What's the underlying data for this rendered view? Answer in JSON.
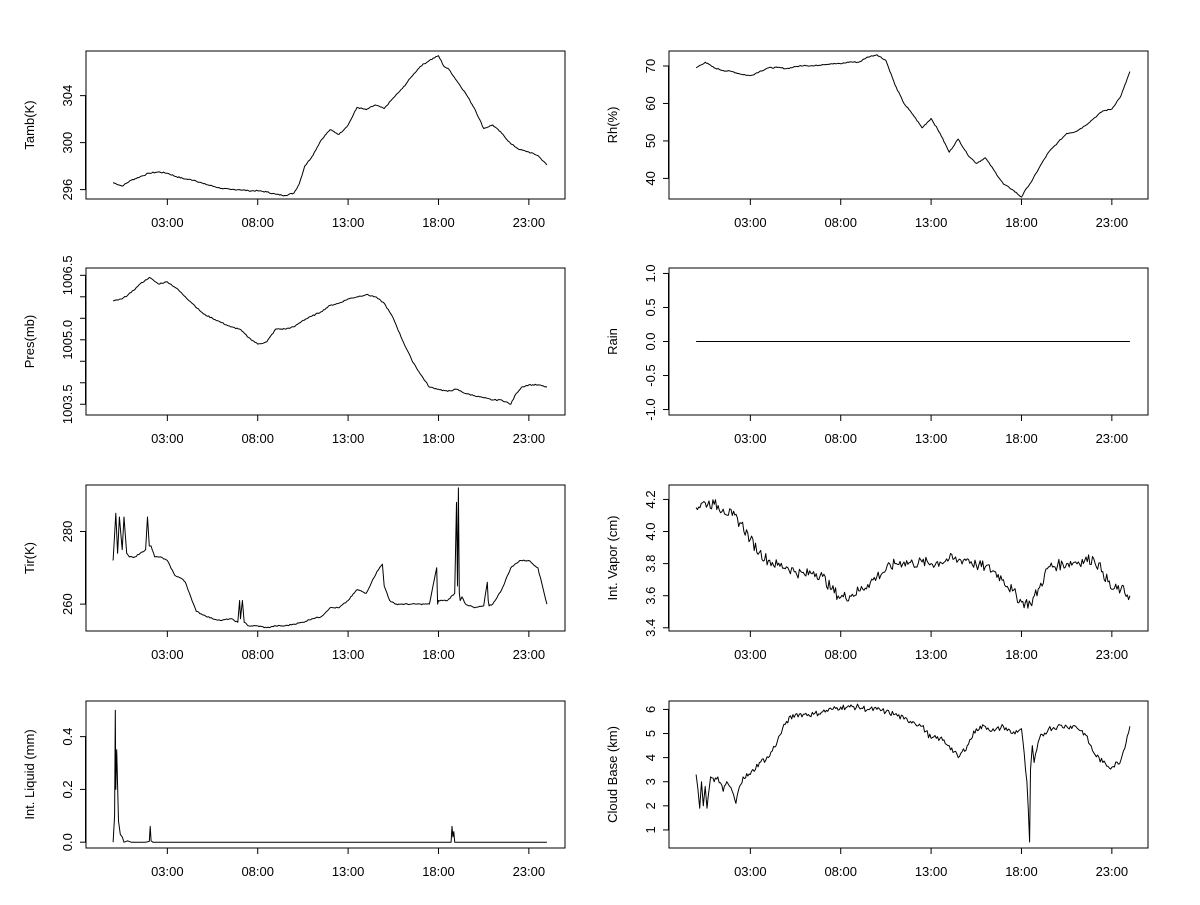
{
  "x_tick_labels": [
    "03:00",
    "08:00",
    "13:00",
    "18:00",
    "23:00"
  ],
  "line_color": "#000000",
  "chart_data": [
    {
      "type": "line",
      "ylabel": "Tamb(K)",
      "ytick_labels": [
        "296",
        "300",
        "304"
      ],
      "yticks": [
        296,
        300,
        304
      ],
      "ylim": [
        295.2,
        307.8
      ],
      "xlim": [
        -1.5,
        25.0
      ],
      "series": [
        {
          "x": [
            0.0,
            0.5,
            1.0,
            1.5,
            2.0,
            2.5,
            3.0,
            3.5,
            4.0,
            4.5,
            5.0,
            5.5,
            6.0,
            6.5,
            7.0,
            7.5,
            8.0,
            8.5,
            9.0,
            9.5,
            10.0,
            10.3,
            10.6,
            11.0,
            11.5,
            12.0,
            12.5,
            13.0,
            13.5,
            14.0,
            14.5,
            15.0,
            15.5,
            16.0,
            16.5,
            17.0,
            17.5,
            18.0,
            18.3,
            18.6,
            19.0,
            19.5,
            20.0,
            20.5,
            21.0,
            21.5,
            22.0,
            22.5,
            23.0,
            23.5,
            24.0
          ],
          "values": [
            296.6,
            296.3,
            296.8,
            297.1,
            297.4,
            297.5,
            297.4,
            297.1,
            296.9,
            296.8,
            296.5,
            296.3,
            296.1,
            296.0,
            296.0,
            295.9,
            295.9,
            295.8,
            295.6,
            295.5,
            295.7,
            296.5,
            298.0,
            298.8,
            300.2,
            301.1,
            300.7,
            301.5,
            303.0,
            302.8,
            303.2,
            302.9,
            303.8,
            304.6,
            305.6,
            306.5,
            307.0,
            307.4,
            306.5,
            306.2,
            305.3,
            304.2,
            302.9,
            301.2,
            301.5,
            300.8,
            299.9,
            299.4,
            299.2,
            298.9,
            298.1
          ]
        }
      ]
    },
    {
      "type": "line",
      "ylabel": "Rh(%)",
      "ytick_labels": [
        "40",
        "50",
        "60",
        "70"
      ],
      "yticks": [
        40,
        50,
        60,
        70
      ],
      "ylim": [
        34.5,
        74.0
      ],
      "xlim": [
        -1.5,
        25.0
      ],
      "series": [
        {
          "x": [
            0.0,
            0.5,
            1.0,
            1.5,
            2.0,
            2.5,
            3.0,
            3.5,
            4.0,
            4.5,
            5.0,
            5.5,
            6.0,
            6.5,
            7.0,
            7.5,
            8.0,
            8.5,
            9.0,
            9.5,
            10.0,
            10.5,
            11.0,
            11.5,
            12.0,
            12.5,
            13.0,
            13.5,
            14.0,
            14.5,
            15.0,
            15.5,
            16.0,
            16.5,
            17.0,
            17.5,
            18.0,
            18.3,
            18.6,
            19.0,
            19.5,
            20.0,
            20.5,
            21.0,
            21.5,
            22.0,
            22.5,
            23.0,
            23.5,
            24.0
          ],
          "values": [
            69.5,
            71.0,
            69.5,
            68.8,
            68.5,
            67.8,
            67.4,
            68.5,
            69.5,
            69.6,
            69.3,
            69.8,
            70.2,
            70.0,
            70.4,
            70.6,
            70.6,
            71.1,
            71.0,
            72.4,
            73.0,
            71.5,
            65.0,
            60.0,
            57.0,
            53.5,
            56.0,
            52.0,
            47.0,
            50.5,
            46.5,
            44.0,
            45.5,
            42.0,
            38.5,
            37.0,
            35.0,
            37.5,
            39.5,
            43.0,
            47.0,
            49.5,
            52.0,
            52.5,
            54.0,
            56.0,
            58.0,
            58.5,
            62.0,
            68.5
          ]
        }
      ]
    },
    {
      "type": "line",
      "ylabel": "Pres(mb)",
      "ytick_labels": [
        "1003.5",
        "1005.0",
        "1006.5"
      ],
      "yticks": [
        1003.5,
        1004.0,
        1004.5,
        1005.0,
        1005.5,
        1006.0,
        1006.5
      ],
      "ylim": [
        1003.25,
        1006.67
      ],
      "xlim": [
        -1.5,
        25.0
      ],
      "series": [
        {
          "x": [
            0.0,
            0.5,
            1.0,
            1.5,
            2.0,
            2.5,
            3.0,
            3.5,
            4.0,
            4.5,
            5.0,
            5.5,
            6.0,
            6.5,
            7.0,
            7.5,
            8.0,
            8.5,
            9.0,
            9.5,
            10.0,
            10.5,
            11.0,
            11.5,
            12.0,
            12.5,
            13.0,
            13.5,
            14.0,
            14.5,
            15.0,
            15.5,
            16.0,
            16.5,
            17.0,
            17.5,
            18.0,
            18.5,
            19.0,
            19.5,
            20.0,
            20.5,
            21.0,
            21.5,
            22.0,
            22.3,
            22.6,
            23.0,
            23.5,
            24.0
          ],
          "values": [
            1005.9,
            1005.95,
            1006.1,
            1006.3,
            1006.45,
            1006.3,
            1006.35,
            1006.2,
            1006.0,
            1005.8,
            1005.6,
            1005.5,
            1005.4,
            1005.3,
            1005.25,
            1005.05,
            1004.9,
            1004.95,
            1005.25,
            1005.25,
            1005.3,
            1005.45,
            1005.55,
            1005.65,
            1005.8,
            1005.85,
            1005.95,
            1006.0,
            1006.05,
            1006.0,
            1005.85,
            1005.5,
            1005.0,
            1004.55,
            1004.2,
            1003.9,
            1003.85,
            1003.8,
            1003.85,
            1003.75,
            1003.7,
            1003.65,
            1003.6,
            1003.6,
            1003.5,
            1003.75,
            1003.9,
            1003.95,
            1003.95,
            1003.9
          ]
        }
      ]
    },
    {
      "type": "line",
      "ylabel": "Rain",
      "ytick_labels": [
        "-1.0",
        "-0.5",
        "0.0",
        "0.5",
        "1.0"
      ],
      "yticks": [
        -1.0,
        -0.5,
        0.0,
        0.5,
        1.0
      ],
      "ylim": [
        -1.08,
        1.08
      ],
      "xlim": [
        -1.5,
        25.0
      ],
      "series": [
        {
          "x": [
            0.0,
            24.0
          ],
          "values": [
            0.0,
            0.0
          ]
        }
      ]
    },
    {
      "type": "line",
      "ylabel": "Tir(K)",
      "ytick_labels": [
        "260",
        "280"
      ],
      "yticks": [
        260,
        280
      ],
      "ylim": [
        252.6,
        292.8
      ],
      "xlim": [
        -1.5,
        25.0
      ],
      "series": [
        {
          "x": [
            0.0,
            0.15,
            0.25,
            0.35,
            0.5,
            0.6,
            0.75,
            0.9,
            1.05,
            1.2,
            1.5,
            1.8,
            1.9,
            2.0,
            2.1,
            2.3,
            2.6,
            3.0,
            3.4,
            3.8,
            4.0,
            4.3,
            4.6,
            5.0,
            5.5,
            6.0,
            6.5,
            6.9,
            7.0,
            7.05,
            7.15,
            7.25,
            7.5,
            8.0,
            8.5,
            9.0,
            9.5,
            10.0,
            10.5,
            11.0,
            11.5,
            12.0,
            12.5,
            13.0,
            13.5,
            14.0,
            14.3,
            14.6,
            14.9,
            15.0,
            15.3,
            15.6,
            16.0,
            16.5,
            17.0,
            17.5,
            17.9,
            17.95,
            18.0,
            18.5,
            18.9,
            19.0,
            19.05,
            19.1,
            19.15,
            19.2,
            19.3,
            19.5,
            20.0,
            20.5,
            20.7,
            20.75,
            20.8,
            21.0,
            21.5,
            22.0,
            22.5,
            23.0,
            23.5,
            23.8,
            24.0
          ],
          "values": [
            272,
            285,
            274,
            284,
            275,
            284,
            274,
            273,
            273,
            273,
            274,
            275,
            284,
            276,
            276,
            273,
            273,
            272,
            268,
            267,
            266,
            262,
            258,
            257,
            256,
            255.5,
            256,
            255,
            261,
            256,
            261,
            255,
            254,
            254,
            253.5,
            254,
            254,
            254.5,
            255,
            256,
            256.5,
            259,
            259,
            261,
            264,
            263,
            266,
            269,
            271,
            265,
            261,
            260,
            260,
            260,
            260,
            260,
            270,
            260,
            261,
            261,
            263,
            288,
            265,
            292,
            263,
            261,
            262,
            260,
            259,
            259.5,
            266,
            261,
            259.5,
            260,
            264,
            270,
            272,
            272,
            270,
            264,
            260
          ]
        }
      ]
    },
    {
      "type": "line",
      "ylabel": "Int. Vapor (cm)",
      "ytick_labels": [
        "3.4",
        "3.6",
        "3.8",
        "4.0",
        "4.2"
      ],
      "yticks": [
        3.4,
        3.6,
        3.8,
        4.0,
        4.2
      ],
      "ylim": [
        3.38,
        4.29
      ],
      "xlim": [
        -1.5,
        25.0
      ],
      "series": [
        {
          "x": [
            0.0,
            0.5,
            1.0,
            1.5,
            2.0,
            2.5,
            3.0,
            3.5,
            4.0,
            4.5,
            5.0,
            5.5,
            6.0,
            6.5,
            7.0,
            7.5,
            8.0,
            8.5,
            9.0,
            9.5,
            10.0,
            10.5,
            11.0,
            11.5,
            12.0,
            12.5,
            13.0,
            13.5,
            14.0,
            14.5,
            15.0,
            15.5,
            16.0,
            16.5,
            17.0,
            17.5,
            18.0,
            18.5,
            19.0,
            19.5,
            20.0,
            20.5,
            21.0,
            21.5,
            22.0,
            22.5,
            23.0,
            23.5,
            24.0
          ],
          "values": [
            4.15,
            4.18,
            4.17,
            4.14,
            4.1,
            4.05,
            3.95,
            3.87,
            3.82,
            3.79,
            3.78,
            3.75,
            3.73,
            3.75,
            3.72,
            3.64,
            3.59,
            3.6,
            3.63,
            3.67,
            3.72,
            3.76,
            3.8,
            3.81,
            3.8,
            3.81,
            3.8,
            3.81,
            3.83,
            3.82,
            3.83,
            3.79,
            3.78,
            3.75,
            3.7,
            3.63,
            3.56,
            3.55,
            3.65,
            3.78,
            3.79,
            3.8,
            3.81,
            3.82,
            3.83,
            3.75,
            3.64,
            3.64,
            3.6
          ]
        }
      ]
    },
    {
      "type": "line",
      "ylabel": "Int. Liquid (mm)",
      "ytick_labels": [
        "0.0",
        "0.2",
        "0.4"
      ],
      "yticks": [
        0.0,
        0.2,
        0.4
      ],
      "ylim": [
        -0.022,
        0.535
      ],
      "xlim": [
        -1.5,
        25.0
      ],
      "series": [
        {
          "x": [
            0.0,
            0.08,
            0.12,
            0.15,
            0.2,
            0.3,
            0.4,
            0.5,
            0.6,
            0.8,
            1.0,
            1.8,
            2.0,
            2.05,
            2.1,
            2.2,
            3.0,
            9.0,
            13.0,
            18.0,
            18.7,
            18.75,
            18.8,
            18.85,
            18.9,
            19.5,
            23.0,
            24.0
          ],
          "values": [
            0.0,
            0.1,
            0.5,
            0.2,
            0.35,
            0.08,
            0.03,
            0.02,
            0.0,
            0.005,
            0.0,
            0.0,
            0.003,
            0.06,
            0.005,
            0.0,
            0.0,
            0.0,
            0.0,
            0.0,
            0.0,
            0.06,
            0.02,
            0.04,
            0.0,
            0.0,
            0.0,
            0.0
          ]
        }
      ]
    },
    {
      "type": "line",
      "ylabel": "Cloud Base (km)",
      "ytick_labels": [
        "1",
        "2",
        "3",
        "4",
        "5",
        "6"
      ],
      "yticks": [
        1,
        2,
        3,
        4,
        5,
        6
      ],
      "ylim": [
        0.25,
        6.35
      ],
      "xlim": [
        -1.5,
        25.0
      ],
      "series": [
        {
          "x": [
            0.0,
            0.1,
            0.2,
            0.3,
            0.4,
            0.5,
            0.6,
            0.8,
            1.0,
            1.2,
            1.5,
            1.7,
            2.0,
            2.2,
            2.4,
            2.6,
            3.0,
            3.5,
            4.0,
            4.5,
            5.0,
            5.5,
            6.0,
            6.5,
            7.0,
            7.5,
            8.0,
            8.5,
            9.0,
            9.5,
            10.0,
            10.5,
            11.0,
            11.5,
            12.0,
            12.5,
            13.0,
            13.5,
            14.0,
            14.5,
            15.0,
            15.5,
            16.0,
            16.5,
            17.0,
            17.5,
            18.0,
            18.3,
            18.45,
            18.5,
            18.6,
            18.7,
            19.0,
            19.5,
            20.0,
            20.5,
            21.0,
            21.5,
            22.0,
            22.5,
            23.0,
            23.5,
            24.0
          ],
          "values": [
            3.3,
            2.7,
            1.9,
            3.0,
            2.0,
            2.8,
            1.9,
            3.2,
            3.0,
            3.2,
            2.6,
            3.0,
            2.6,
            2.1,
            2.8,
            3.2,
            3.3,
            3.8,
            4.0,
            4.7,
            5.5,
            5.8,
            5.8,
            5.8,
            5.9,
            6.0,
            6.1,
            6.1,
            6.1,
            6.0,
            6.0,
            5.9,
            5.8,
            5.6,
            5.5,
            5.3,
            4.8,
            4.8,
            4.5,
            4.0,
            4.5,
            5.2,
            5.3,
            5.1,
            5.3,
            5.0,
            5.2,
            3.0,
            0.5,
            3.5,
            4.5,
            3.8,
            4.8,
            5.2,
            5.3,
            5.3,
            5.3,
            5.0,
            4.2,
            3.8,
            3.6,
            3.9,
            5.3
          ]
        }
      ]
    }
  ]
}
